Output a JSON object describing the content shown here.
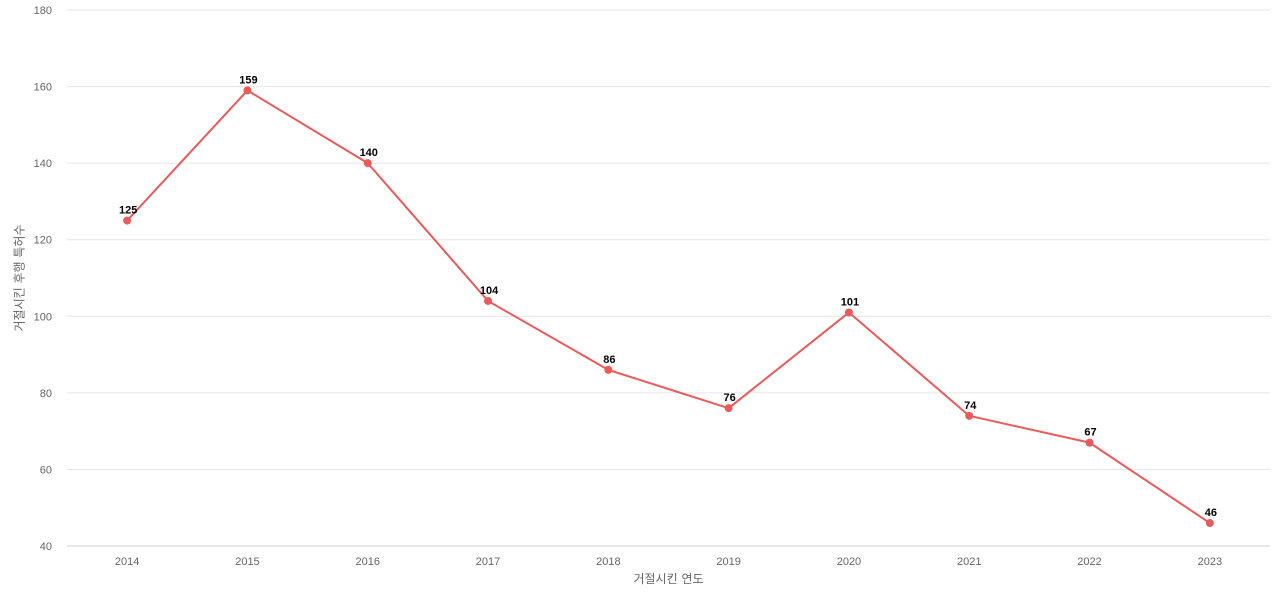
{
  "chart_data": {
    "type": "line",
    "title": "",
    "xlabel": "거절시킨 연도",
    "ylabel": "거절시킨 후행 특허수",
    "categories": [
      "2014",
      "2015",
      "2016",
      "2017",
      "2018",
      "2019",
      "2020",
      "2021",
      "2022",
      "2023"
    ],
    "series": [
      {
        "values": [
          125,
          159,
          140,
          104,
          86,
          76,
          101,
          74,
          67,
          46
        ],
        "color": "#eb5a5a"
      }
    ],
    "ylim": [
      40,
      180
    ],
    "yticks": [
      40,
      60,
      80,
      100,
      120,
      140,
      160,
      180
    ],
    "grid": true,
    "legend": "none",
    "data_labels": true
  }
}
